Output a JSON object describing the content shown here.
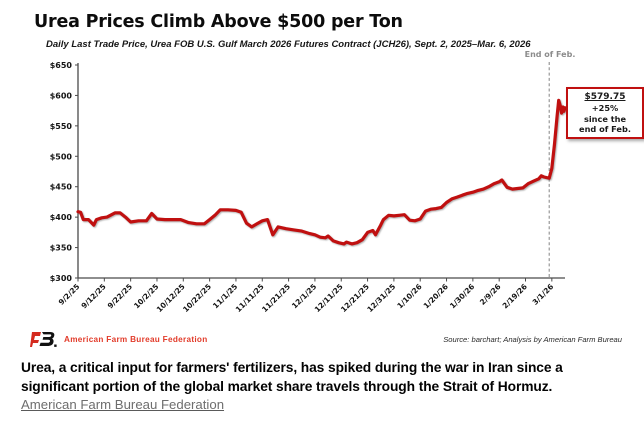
{
  "header": {
    "title": "Urea Prices Climb Above $500 per Ton",
    "subtitle": "Daily Last Trade Price, Urea FOB U.S. Gulf March 2026 Futures Contract (JCH26), Sept. 2, 2025–Mar. 6, 2026"
  },
  "chart_data": {
    "type": "line",
    "title": "Urea Prices Climb Above $500 per Ton",
    "ylim": [
      300,
      650
    ],
    "x_day_span": 185,
    "y_ticks": [
      300,
      350,
      400,
      450,
      500,
      550,
      600,
      650
    ],
    "y_tick_labels": [
      "$300",
      "$350",
      "$400",
      "$450",
      "$500",
      "$550",
      "$600",
      "$650"
    ],
    "x_tick_days": [
      0,
      10,
      20,
      30,
      40,
      50,
      60,
      70,
      80,
      90,
      100,
      110,
      120,
      130,
      140,
      150,
      160,
      170,
      180
    ],
    "x_tick_labels": [
      "9/2/25",
      "9/12/25",
      "9/22/25",
      "10/2/25",
      "10/12/25",
      "10/22/25",
      "11/1/25",
      "11/11/25",
      "11/21/25",
      "12/1/25",
      "12/11/25",
      "12/21/25",
      "12/31/25",
      "1/10/26",
      "1/20/26",
      "1/30/26",
      "2/9/26",
      "2/19/26",
      "3/1/26"
    ],
    "line_color": "#c01010",
    "axis_color": "#4a4a4a",
    "dashed_marker_day": 179,
    "end_label": "End of Feb.",
    "annotation": {
      "price": "$579.75",
      "pct": "+25%",
      "line2": "since the",
      "line3": "end of Feb."
    },
    "last_price": 579.75,
    "points": [
      [
        0,
        409
      ],
      [
        1,
        408
      ],
      [
        2,
        396
      ],
      [
        4,
        396
      ],
      [
        6,
        387
      ],
      [
        7,
        396
      ],
      [
        9,
        399
      ],
      [
        11,
        400
      ],
      [
        14,
        407
      ],
      [
        16,
        407
      ],
      [
        18,
        400
      ],
      [
        20,
        392
      ],
      [
        23,
        394
      ],
      [
        26,
        394
      ],
      [
        28,
        406
      ],
      [
        30,
        397
      ],
      [
        33,
        396
      ],
      [
        36,
        396
      ],
      [
        39,
        396
      ],
      [
        42,
        391
      ],
      [
        45,
        389
      ],
      [
        48,
        389
      ],
      [
        50,
        396
      ],
      [
        52,
        403
      ],
      [
        54,
        412
      ],
      [
        57,
        412
      ],
      [
        60,
        411
      ],
      [
        62,
        408
      ],
      [
        64,
        390
      ],
      [
        66,
        384
      ],
      [
        68,
        389
      ],
      [
        70,
        394
      ],
      [
        72,
        396
      ],
      [
        74,
        371
      ],
      [
        76,
        384
      ],
      [
        79,
        381
      ],
      [
        82,
        379
      ],
      [
        85,
        377
      ],
      [
        88,
        373
      ],
      [
        90,
        371
      ],
      [
        92,
        367
      ],
      [
        94,
        366
      ],
      [
        95,
        369
      ],
      [
        97,
        361
      ],
      [
        99,
        358
      ],
      [
        101,
        356
      ],
      [
        102,
        359
      ],
      [
        104,
        356
      ],
      [
        106,
        358
      ],
      [
        108,
        363
      ],
      [
        110,
        375
      ],
      [
        112,
        378
      ],
      [
        113,
        371
      ],
      [
        115,
        387
      ],
      [
        116,
        396
      ],
      [
        118,
        403
      ],
      [
        120,
        402
      ],
      [
        122,
        403
      ],
      [
        124,
        404
      ],
      [
        126,
        395
      ],
      [
        128,
        394
      ],
      [
        130,
        397
      ],
      [
        132,
        410
      ],
      [
        134,
        413
      ],
      [
        136,
        414
      ],
      [
        138,
        416
      ],
      [
        140,
        424
      ],
      [
        142,
        430
      ],
      [
        144,
        433
      ],
      [
        146,
        436
      ],
      [
        148,
        439
      ],
      [
        150,
        441
      ],
      [
        152,
        444
      ],
      [
        154,
        446
      ],
      [
        156,
        450
      ],
      [
        158,
        455
      ],
      [
        160,
        458
      ],
      [
        161,
        461
      ],
      [
        163,
        449
      ],
      [
        165,
        446
      ],
      [
        167,
        447
      ],
      [
        169,
        448
      ],
      [
        171,
        455
      ],
      [
        173,
        459
      ],
      [
        175,
        463
      ],
      [
        176,
        468
      ],
      [
        177,
        466
      ],
      [
        179,
        464
      ],
      [
        180,
        480
      ],
      [
        181,
        520
      ],
      [
        182,
        566
      ],
      [
        182.6,
        592
      ],
      [
        183.2,
        583
      ],
      [
        183.7,
        571
      ],
      [
        184.2,
        581
      ],
      [
        184.6,
        574
      ],
      [
        185,
        579.75
      ]
    ],
    "source": "Source: barchart; Analysis by American Farm Bureau"
  },
  "brand": {
    "name": "American Farm Bureau Federation"
  },
  "caption": {
    "text": "Urea, a critical input for farmers' fertilizers, has spiked during the war in Iran since a significant portion of the global market share travels through the Strait of Hormuz.",
    "link": "American Farm Bureau Federation"
  }
}
